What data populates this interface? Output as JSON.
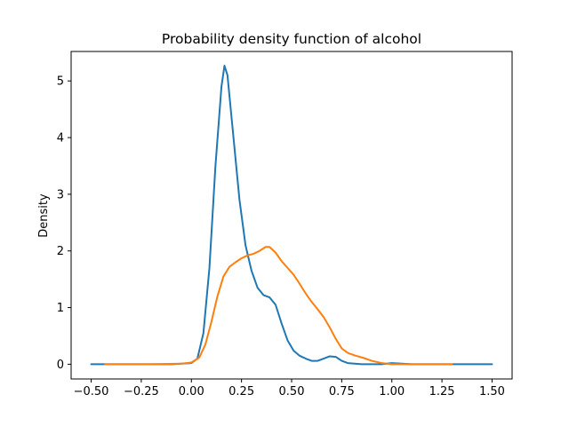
{
  "chart_data": {
    "type": "line",
    "title": "Probability density function of alcohol",
    "xlabel": "",
    "ylabel": "Density",
    "xlim": [
      -0.6,
      1.6
    ],
    "ylim": [
      -0.26,
      5.52
    ],
    "xticks": [
      -0.5,
      -0.25,
      0.0,
      0.25,
      0.5,
      0.75,
      1.0,
      1.25,
      1.5
    ],
    "xtick_labels": [
      "−0.50",
      "−0.25",
      "0.00",
      "0.25",
      "0.50",
      "0.75",
      "1.00",
      "1.25",
      "1.50"
    ],
    "yticks": [
      0,
      1,
      2,
      3,
      4,
      5
    ],
    "ytick_labels": [
      "0",
      "1",
      "2",
      "3",
      "4",
      "5"
    ],
    "grid": false,
    "legend": "none",
    "series": [
      {
        "color": "#1f77b4",
        "points": [
          [
            -0.5,
            0.0
          ],
          [
            -0.3,
            0.0
          ],
          [
            -0.1,
            0.0
          ],
          [
            0.0,
            0.02
          ],
          [
            0.03,
            0.1
          ],
          [
            0.06,
            0.55
          ],
          [
            0.09,
            1.7
          ],
          [
            0.12,
            3.5
          ],
          [
            0.15,
            4.9
          ],
          [
            0.165,
            5.27
          ],
          [
            0.18,
            5.1
          ],
          [
            0.21,
            4.0
          ],
          [
            0.24,
            2.9
          ],
          [
            0.27,
            2.1
          ],
          [
            0.3,
            1.65
          ],
          [
            0.33,
            1.35
          ],
          [
            0.36,
            1.22
          ],
          [
            0.39,
            1.18
          ],
          [
            0.42,
            1.05
          ],
          [
            0.45,
            0.72
          ],
          [
            0.48,
            0.42
          ],
          [
            0.51,
            0.24
          ],
          [
            0.54,
            0.15
          ],
          [
            0.57,
            0.1
          ],
          [
            0.6,
            0.06
          ],
          [
            0.63,
            0.06
          ],
          [
            0.66,
            0.1
          ],
          [
            0.69,
            0.14
          ],
          [
            0.72,
            0.13
          ],
          [
            0.75,
            0.06
          ],
          [
            0.78,
            0.02
          ],
          [
            0.85,
            0.0
          ],
          [
            0.95,
            0.0
          ],
          [
            1.0,
            0.02
          ],
          [
            1.05,
            0.01
          ],
          [
            1.1,
            0.0
          ],
          [
            1.3,
            0.0
          ],
          [
            1.5,
            0.0
          ]
        ]
      },
      {
        "color": "#ff7f0e",
        "points": [
          [
            -0.43,
            0.0
          ],
          [
            -0.2,
            0.0
          ],
          [
            -0.05,
            0.01
          ],
          [
            0.0,
            0.03
          ],
          [
            0.04,
            0.12
          ],
          [
            0.07,
            0.35
          ],
          [
            0.1,
            0.75
          ],
          [
            0.13,
            1.2
          ],
          [
            0.16,
            1.55
          ],
          [
            0.19,
            1.72
          ],
          [
            0.22,
            1.8
          ],
          [
            0.25,
            1.87
          ],
          [
            0.28,
            1.92
          ],
          [
            0.31,
            1.95
          ],
          [
            0.34,
            2.0
          ],
          [
            0.37,
            2.07
          ],
          [
            0.39,
            2.07
          ],
          [
            0.42,
            1.97
          ],
          [
            0.45,
            1.82
          ],
          [
            0.48,
            1.7
          ],
          [
            0.51,
            1.58
          ],
          [
            0.54,
            1.42
          ],
          [
            0.57,
            1.25
          ],
          [
            0.6,
            1.1
          ],
          [
            0.63,
            0.97
          ],
          [
            0.66,
            0.83
          ],
          [
            0.69,
            0.65
          ],
          [
            0.72,
            0.45
          ],
          [
            0.75,
            0.28
          ],
          [
            0.78,
            0.2
          ],
          [
            0.82,
            0.15
          ],
          [
            0.86,
            0.11
          ],
          [
            0.9,
            0.06
          ],
          [
            0.95,
            0.02
          ],
          [
            1.0,
            0.0
          ],
          [
            1.1,
            0.0
          ],
          [
            1.3,
            0.0
          ]
        ]
      }
    ]
  }
}
